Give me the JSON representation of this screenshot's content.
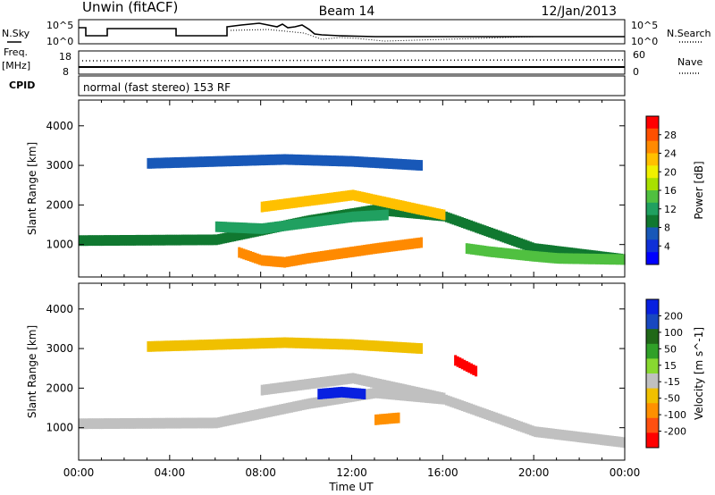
{
  "header": {
    "station": "Unwin (fitACF)",
    "beam": "Beam 14",
    "date": "12/Jan/2013"
  },
  "top_panels": {
    "nsky_label": "N.Sky",
    "nsky_ticks": [
      "10^5",
      "10^0"
    ],
    "nsearch_label": "N.Search",
    "nsearch_ticks": [
      "10^5",
      "10^0"
    ],
    "freq_label_1": "Freq.",
    "freq_label_2": "[MHz]",
    "freq_ticks": [
      "18",
      "8"
    ],
    "nave_label": "Nave",
    "nave_ticks": [
      "60",
      "0"
    ],
    "cpid_label": "CPID",
    "cpid_text": "normal (fast stereo) 153 RF"
  },
  "x_axis": {
    "label": "Time UT",
    "ticks": [
      "00:00",
      "04:00",
      "08:00",
      "12:00",
      "16:00",
      "20:00",
      "00:00"
    ]
  },
  "power_colorbar": {
    "label": "Power [dB]",
    "ticks": [
      "28",
      "24",
      "20",
      "16",
      "12",
      "8",
      "4"
    ],
    "colors": [
      "#ff0000",
      "#ff5000",
      "#ff8a00",
      "#ffc000",
      "#f0f000",
      "#a8e000",
      "#50c040",
      "#20a060",
      "#107830",
      "#1858b8",
      "#1030d8",
      "#0000ff"
    ]
  },
  "velocity_colorbar": {
    "label": "Velocity [m s^-1]",
    "ticks": [
      "200",
      "100",
      "50",
      "15",
      "-15",
      "-50",
      "-100",
      "-200"
    ],
    "colors": [
      "#0820e0",
      "#1848c0",
      "#206818",
      "#30a028",
      "#88d830",
      "#c0c0c0",
      "#f0c000",
      "#ff9000",
      "#ff5010",
      "#ff0000"
    ]
  },
  "chart_data": [
    {
      "type": "heatmap",
      "name": "Power",
      "ylabel": "Slant Range [km]",
      "xlabel": "",
      "yticks": [
        1000,
        2000,
        3000,
        4000
      ],
      "ylim": [
        180,
        4650
      ],
      "xlim_hours": [
        0,
        24
      ],
      "unit": "dB",
      "scale_range": [
        0,
        30
      ],
      "bands": [
        {
          "t": [
            0,
            6,
            10,
            13,
            16,
            20,
            24
          ],
          "r": [
            1100,
            1120,
            1600,
            1880,
            1720,
            900,
            620
          ],
          "power_db": 8
        },
        {
          "t": [
            6,
            8,
            10,
            12,
            13.5
          ],
          "r": [
            1450,
            1400,
            1550,
            1700,
            1750
          ],
          "power_db": 12
        },
        {
          "t": [
            8,
            10,
            12,
            14,
            16
          ],
          "r": [
            1950,
            2100,
            2250,
            2000,
            1750
          ],
          "power_db": 22
        },
        {
          "t": [
            7,
            8,
            9,
            10,
            13,
            15
          ],
          "r": [
            800,
            600,
            550,
            650,
            900,
            1050
          ],
          "power_db": 24
        },
        {
          "t": [
            17,
            18,
            19,
            20,
            21,
            22,
            24
          ],
          "r": [
            900,
            820,
            760,
            700,
            650,
            640,
            620
          ],
          "power_db": 14
        },
        {
          "t": [
            3,
            6,
            9,
            12,
            15
          ],
          "r": [
            3050,
            3100,
            3150,
            3100,
            3000
          ],
          "power_db": 6
        }
      ]
    },
    {
      "type": "heatmap",
      "name": "Velocity",
      "ylabel": "Slant Range [km]",
      "xlabel": "Time UT",
      "yticks": [
        1000,
        2000,
        3000,
        4000
      ],
      "ylim": [
        180,
        4650
      ],
      "xlim_hours": [
        0,
        24
      ],
      "unit": "m s^-1",
      "bands": [
        {
          "t": [
            0,
            6,
            10,
            13,
            16,
            20,
            24
          ],
          "r": [
            1100,
            1120,
            1600,
            1880,
            1720,
            900,
            620
          ],
          "velocity": 0
        },
        {
          "t": [
            8,
            10,
            12,
            14,
            16
          ],
          "r": [
            1950,
            2100,
            2250,
            2000,
            1750
          ],
          "velocity": 0
        },
        {
          "t": [
            10.5,
            11.5,
            12.5
          ],
          "r": [
            1850,
            1900,
            1850
          ],
          "velocity": 180
        },
        {
          "t": [
            16.5,
            17.5
          ],
          "r": [
            2700,
            2400
          ],
          "velocity": -200
        },
        {
          "t": [
            13,
            14
          ],
          "r": [
            1200,
            1250
          ],
          "velocity": -50
        },
        {
          "t": [
            3,
            6,
            9,
            12,
            15
          ],
          "r": [
            3050,
            3100,
            3150,
            3100,
            3000
          ],
          "velocity": -15
        }
      ]
    }
  ]
}
